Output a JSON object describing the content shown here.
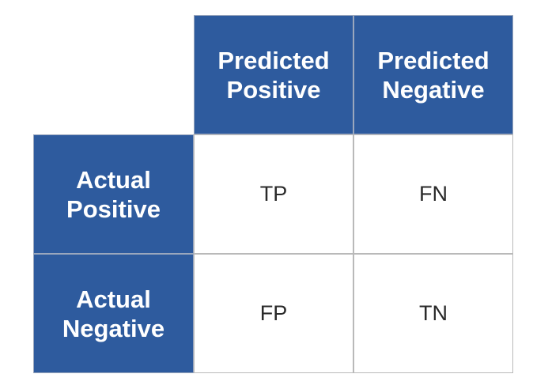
{
  "columns": [
    {
      "line1": "Predicted",
      "line2": "Positive"
    },
    {
      "line1": "Predicted",
      "line2": "Negative"
    }
  ],
  "rows": [
    {
      "line1": "Actual",
      "line2": "Positive",
      "cells": [
        "TP",
        "FN"
      ]
    },
    {
      "line1": "Actual",
      "line2": "Negative",
      "cells": [
        "FP",
        "TN"
      ]
    }
  ],
  "colors": {
    "header_bg": "#2e5b9e",
    "header_text": "#ffffff",
    "cell_bg": "#ffffff",
    "cell_text": "#2a2a2a",
    "grid": "#b9b9b9"
  }
}
